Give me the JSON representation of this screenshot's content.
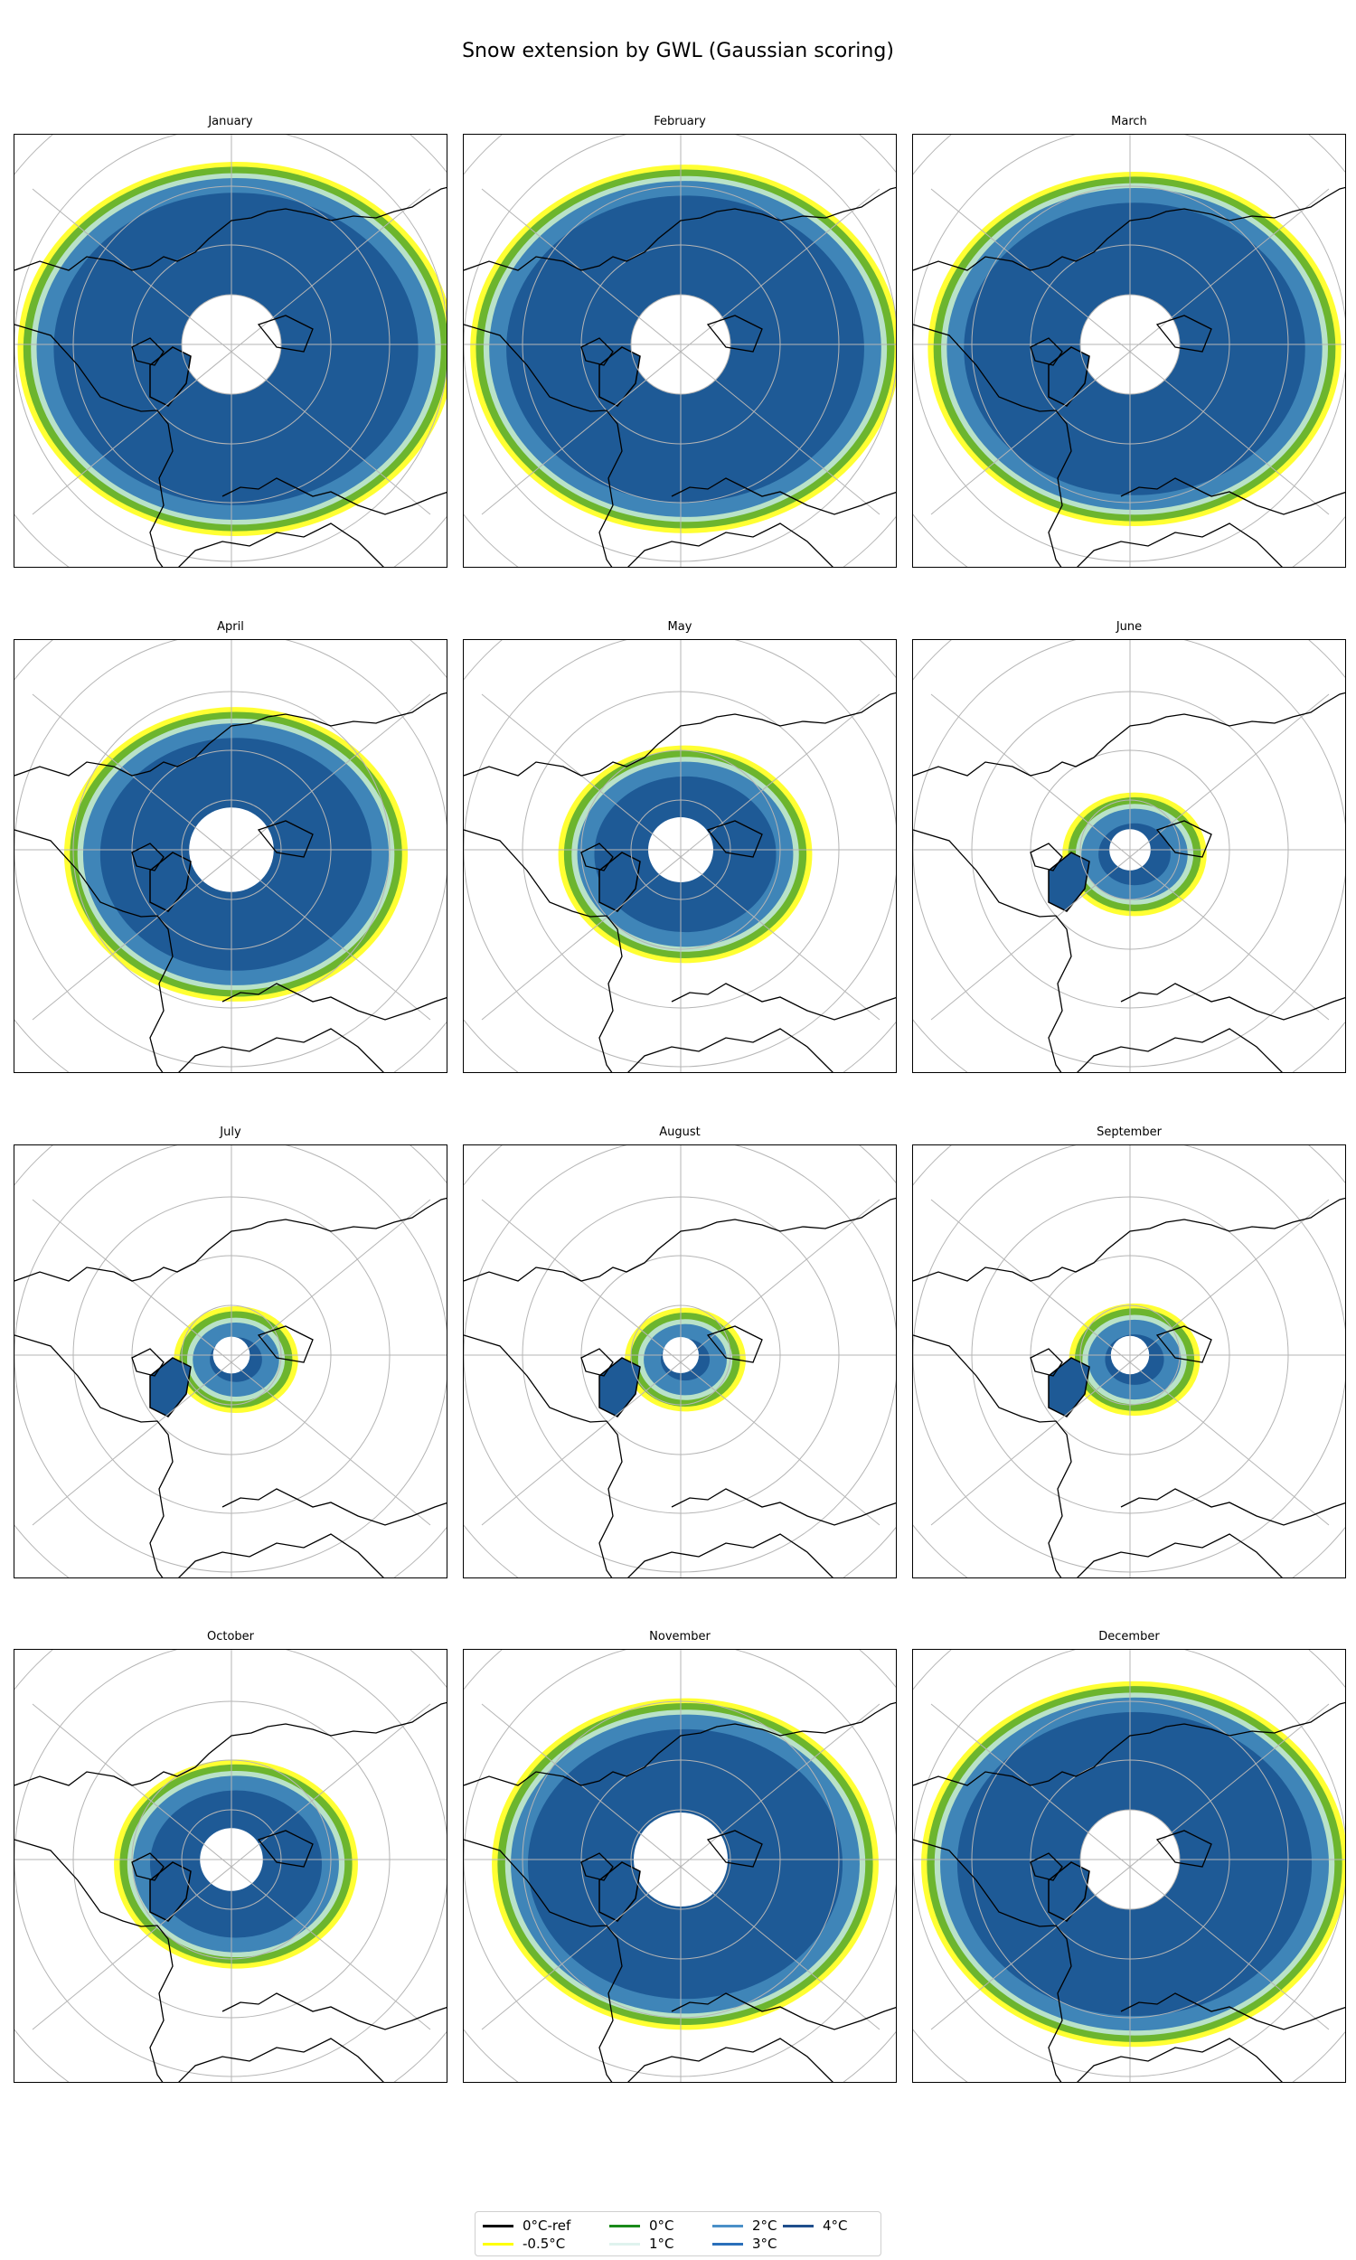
{
  "figure": {
    "title": "Snow extension by GWL (Gaussian scoring)"
  },
  "panels": [
    {
      "month": "January",
      "extent": 1.0
    },
    {
      "month": "February",
      "extent": 0.98
    },
    {
      "month": "March",
      "extent": 0.93
    },
    {
      "month": "April",
      "extent": 0.72
    },
    {
      "month": "May",
      "extent": 0.45
    },
    {
      "month": "June",
      "extent": 0.12
    },
    {
      "month": "July",
      "extent": 0.06
    },
    {
      "month": "August",
      "extent": 0.05
    },
    {
      "month": "September",
      "extent": 0.08
    },
    {
      "month": "October",
      "extent": 0.42
    },
    {
      "month": "November",
      "extent": 0.85
    },
    {
      "month": "December",
      "extent": 0.97
    }
  ],
  "legend": [
    {
      "label": "0°C-ref",
      "color": "#000000"
    },
    {
      "label": "-0.5°C",
      "color": "#ffff00"
    },
    {
      "label": "0°C",
      "color": "#1a8a1a"
    },
    {
      "label": "1°C",
      "color": "#dff3ee"
    },
    {
      "label": "2°C",
      "color": "#4a90c8"
    },
    {
      "label": "3°C",
      "color": "#2a6fba"
    },
    {
      "label": "4°C",
      "color": "#1f4e8c"
    }
  ],
  "colors": {
    "fill_outer": "#ffff33",
    "fill_green": "#6cb52e",
    "fill_light": "#b9e2c8",
    "fill_mid": "#3f85b8",
    "fill_dark": "#1e5a96"
  }
}
